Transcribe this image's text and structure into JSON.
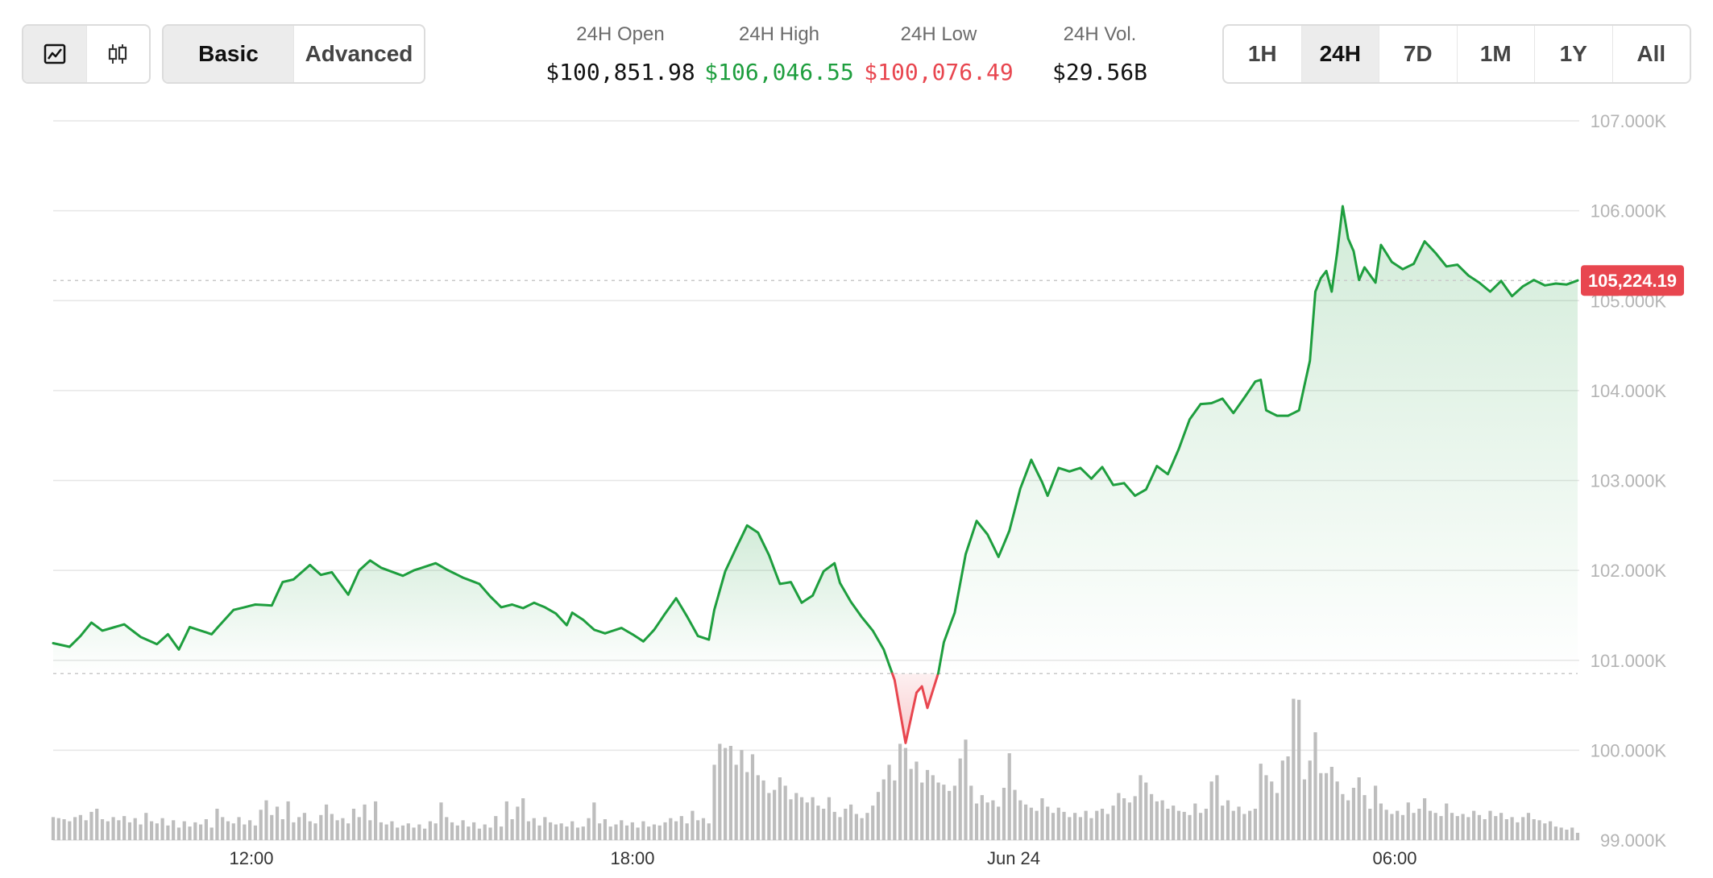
{
  "toolbar": {
    "chart_type_buttons": [
      {
        "icon": "line-chart-icon",
        "active": true
      },
      {
        "icon": "candlestick-icon",
        "active": false
      }
    ],
    "mode_buttons": [
      {
        "label": "Basic",
        "active": true
      },
      {
        "label": "Advanced",
        "active": false
      }
    ],
    "range_buttons": [
      {
        "label": "1H",
        "active": false
      },
      {
        "label": "24H",
        "active": true
      },
      {
        "label": "7D",
        "active": false
      },
      {
        "label": "1M",
        "active": false
      },
      {
        "label": "1Y",
        "active": false
      },
      {
        "label": "All",
        "active": false
      }
    ]
  },
  "stats": {
    "open": {
      "label": "24H Open",
      "value": "$100,851.98"
    },
    "high": {
      "label": "24H High",
      "value": "$106,046.55"
    },
    "low": {
      "label": "24H Low",
      "value": "$100,076.49"
    },
    "volume": {
      "label": "24H Vol.",
      "value": "$29.56B"
    }
  },
  "colors": {
    "up": "#1e9e3e",
    "down": "#e8464f",
    "grid": "#e6e6e6",
    "volume": "#bdbdbd"
  },
  "chart_data": {
    "type": "line",
    "ylim": [
      99000,
      107000
    ],
    "y_ticks": [
      "107.000K",
      "106.000K",
      "105.000K",
      "104.000K",
      "103.000K",
      "102.000K",
      "101.000K",
      "100.000K",
      "99.000K"
    ],
    "x_ticks": [
      "12:00",
      "18:00",
      "Jun 24",
      "06:00"
    ],
    "reference_price": 100851.98,
    "last_price": 105224.19,
    "last_price_label": "105,224.19",
    "price_anchors": [
      [
        0,
        101190
      ],
      [
        3,
        101150
      ],
      [
        5,
        101270
      ],
      [
        7,
        101420
      ],
      [
        9,
        101330
      ],
      [
        13,
        101400
      ],
      [
        16,
        101260
      ],
      [
        19,
        101180
      ],
      [
        21,
        101290
      ],
      [
        23,
        101120
      ],
      [
        25,
        101370
      ],
      [
        29,
        101290
      ],
      [
        33,
        101560
      ],
      [
        37,
        101620
      ],
      [
        40,
        101610
      ],
      [
        42,
        101870
      ],
      [
        44,
        101900
      ],
      [
        47,
        102060
      ],
      [
        49,
        101950
      ],
      [
        51,
        101980
      ],
      [
        54,
        101730
      ],
      [
        56,
        102000
      ],
      [
        58,
        102110
      ],
      [
        60,
        102030
      ],
      [
        64,
        101940
      ],
      [
        66,
        102000
      ],
      [
        68,
        102040
      ],
      [
        70,
        102080
      ],
      [
        72,
        102010
      ],
      [
        75,
        101920
      ],
      [
        78,
        101850
      ],
      [
        80,
        101710
      ],
      [
        82,
        101590
      ],
      [
        84,
        101620
      ],
      [
        86,
        101580
      ],
      [
        88,
        101640
      ],
      [
        90,
        101590
      ],
      [
        92,
        101520
      ],
      [
        94,
        101390
      ],
      [
        95,
        101530
      ],
      [
        97,
        101450
      ],
      [
        99,
        101340
      ],
      [
        101,
        101300
      ],
      [
        104,
        101360
      ],
      [
        106,
        101290
      ],
      [
        108,
        101210
      ],
      [
        110,
        101340
      ],
      [
        112,
        101520
      ],
      [
        114,
        101690
      ],
      [
        116,
        101490
      ],
      [
        118,
        101270
      ],
      [
        120,
        101230
      ],
      [
        121,
        101560
      ],
      [
        123,
        101990
      ],
      [
        125,
        102250
      ],
      [
        127,
        102500
      ],
      [
        129,
        102420
      ],
      [
        131,
        102170
      ],
      [
        133,
        101850
      ],
      [
        135,
        101870
      ],
      [
        137,
        101640
      ],
      [
        139,
        101720
      ],
      [
        141,
        101990
      ],
      [
        143,
        102080
      ],
      [
        144,
        101860
      ],
      [
        146,
        101650
      ],
      [
        148,
        101480
      ],
      [
        150,
        101330
      ],
      [
        152,
        101120
      ],
      [
        154,
        100780
      ],
      [
        156,
        100080
      ],
      [
        158,
        100640
      ],
      [
        159,
        100710
      ],
      [
        160,
        100470
      ],
      [
        162,
        100860
      ],
      [
        163,
        101200
      ],
      [
        165,
        101530
      ],
      [
        167,
        102180
      ],
      [
        169,
        102550
      ],
      [
        171,
        102400
      ],
      [
        173,
        102150
      ],
      [
        175,
        102440
      ],
      [
        177,
        102910
      ],
      [
        179,
        103230
      ],
      [
        181,
        102980
      ],
      [
        182,
        102830
      ],
      [
        184,
        103140
      ],
      [
        186,
        103100
      ],
      [
        188,
        103140
      ],
      [
        190,
        103020
      ],
      [
        192,
        103150
      ],
      [
        194,
        102950
      ],
      [
        196,
        102970
      ],
      [
        198,
        102830
      ],
      [
        200,
        102900
      ],
      [
        202,
        103160
      ],
      [
        204,
        103070
      ],
      [
        206,
        103350
      ],
      [
        208,
        103680
      ],
      [
        210,
        103850
      ],
      [
        212,
        103860
      ],
      [
        214,
        103910
      ],
      [
        216,
        103750
      ],
      [
        218,
        103920
      ],
      [
        220,
        104100
      ],
      [
        221,
        104120
      ],
      [
        222,
        103780
      ],
      [
        224,
        103720
      ],
      [
        226,
        103720
      ],
      [
        228,
        103780
      ],
      [
        230,
        104330
      ],
      [
        231,
        105100
      ],
      [
        232,
        105250
      ],
      [
        233,
        105330
      ],
      [
        234,
        105100
      ],
      [
        235,
        105540
      ],
      [
        236,
        106050
      ],
      [
        237,
        105690
      ],
      [
        238,
        105550
      ],
      [
        239,
        105230
      ],
      [
        240,
        105370
      ],
      [
        242,
        105200
      ],
      [
        243,
        105620
      ],
      [
        245,
        105430
      ],
      [
        247,
        105350
      ],
      [
        249,
        105410
      ],
      [
        251,
        105660
      ],
      [
        253,
        105530
      ],
      [
        255,
        105380
      ],
      [
        257,
        105400
      ],
      [
        259,
        105280
      ],
      [
        261,
        105200
      ],
      [
        263,
        105100
      ],
      [
        265,
        105220
      ],
      [
        267,
        105050
      ],
      [
        269,
        105160
      ],
      [
        271,
        105230
      ],
      [
        273,
        105170
      ],
      [
        275,
        105190
      ],
      [
        277,
        105180
      ],
      [
        279,
        105224
      ]
    ],
    "volume_bars": [
      [
        0,
        0.22
      ],
      [
        1,
        0.21
      ],
      [
        2,
        0.2
      ],
      [
        3,
        0.18
      ],
      [
        4,
        0.22
      ],
      [
        5,
        0.24
      ],
      [
        6,
        0.19
      ],
      [
        7,
        0.27
      ],
      [
        8,
        0.3
      ],
      [
        9,
        0.2
      ],
      [
        10,
        0.18
      ],
      [
        11,
        0.22
      ],
      [
        12,
        0.19
      ],
      [
        13,
        0.23
      ],
      [
        14,
        0.17
      ],
      [
        15,
        0.21
      ],
      [
        16,
        0.15
      ],
      [
        17,
        0.26
      ],
      [
        18,
        0.18
      ],
      [
        19,
        0.16
      ],
      [
        20,
        0.21
      ],
      [
        21,
        0.14
      ],
      [
        22,
        0.19
      ],
      [
        23,
        0.12
      ],
      [
        24,
        0.18
      ],
      [
        25,
        0.13
      ],
      [
        26,
        0.17
      ],
      [
        27,
        0.15
      ],
      [
        28,
        0.2
      ],
      [
        29,
        0.12
      ],
      [
        30,
        0.3
      ],
      [
        31,
        0.22
      ],
      [
        32,
        0.18
      ],
      [
        33,
        0.16
      ],
      [
        34,
        0.22
      ],
      [
        35,
        0.15
      ],
      [
        36,
        0.19
      ],
      [
        37,
        0.14
      ],
      [
        38,
        0.29
      ],
      [
        39,
        0.38
      ],
      [
        40,
        0.24
      ],
      [
        41,
        0.32
      ],
      [
        42,
        0.2
      ],
      [
        43,
        0.37
      ],
      [
        44,
        0.17
      ],
      [
        45,
        0.22
      ],
      [
        46,
        0.26
      ],
      [
        47,
        0.18
      ],
      [
        48,
        0.16
      ],
      [
        49,
        0.24
      ],
      [
        50,
        0.34
      ],
      [
        51,
        0.25
      ],
      [
        52,
        0.19
      ],
      [
        53,
        0.21
      ],
      [
        54,
        0.16
      ],
      [
        55,
        0.3
      ],
      [
        56,
        0.22
      ],
      [
        57,
        0.34
      ],
      [
        58,
        0.19
      ],
      [
        59,
        0.37
      ],
      [
        60,
        0.17
      ],
      [
        61,
        0.15
      ],
      [
        62,
        0.18
      ],
      [
        63,
        0.12
      ],
      [
        64,
        0.14
      ],
      [
        65,
        0.16
      ],
      [
        66,
        0.12
      ],
      [
        67,
        0.15
      ],
      [
        68,
        0.11
      ],
      [
        69,
        0.18
      ],
      [
        70,
        0.16
      ],
      [
        71,
        0.36
      ],
      [
        72,
        0.22
      ],
      [
        73,
        0.17
      ],
      [
        74,
        0.14
      ],
      [
        75,
        0.19
      ],
      [
        76,
        0.13
      ],
      [
        77,
        0.17
      ],
      [
        78,
        0.11
      ],
      [
        79,
        0.15
      ],
      [
        80,
        0.12
      ],
      [
        81,
        0.23
      ],
      [
        82,
        0.13
      ],
      [
        83,
        0.37
      ],
      [
        84,
        0.2
      ],
      [
        85,
        0.32
      ],
      [
        86,
        0.4
      ],
      [
        87,
        0.18
      ],
      [
        88,
        0.21
      ],
      [
        89,
        0.14
      ],
      [
        90,
        0.22
      ],
      [
        91,
        0.17
      ],
      [
        92,
        0.15
      ],
      [
        93,
        0.16
      ],
      [
        94,
        0.13
      ],
      [
        95,
        0.18
      ],
      [
        96,
        0.12
      ],
      [
        97,
        0.13
      ],
      [
        98,
        0.21
      ],
      [
        99,
        0.36
      ],
      [
        100,
        0.16
      ],
      [
        101,
        0.2
      ],
      [
        102,
        0.13
      ],
      [
        103,
        0.15
      ],
      [
        104,
        0.19
      ],
      [
        105,
        0.14
      ],
      [
        106,
        0.17
      ],
      [
        107,
        0.12
      ],
      [
        108,
        0.18
      ],
      [
        109,
        0.13
      ],
      [
        110,
        0.15
      ],
      [
        111,
        0.14
      ],
      [
        112,
        0.17
      ],
      [
        113,
        0.21
      ],
      [
        114,
        0.18
      ],
      [
        115,
        0.23
      ],
      [
        116,
        0.16
      ],
      [
        117,
        0.28
      ],
      [
        118,
        0.19
      ],
      [
        119,
        0.21
      ],
      [
        120,
        0.16
      ],
      [
        121,
        0.72
      ],
      [
        122,
        0.92
      ],
      [
        123,
        0.88
      ],
      [
        124,
        0.9
      ],
      [
        125,
        0.72
      ],
      [
        126,
        0.86
      ],
      [
        127,
        0.65
      ],
      [
        128,
        0.82
      ],
      [
        129,
        0.62
      ],
      [
        130,
        0.57
      ],
      [
        131,
        0.45
      ],
      [
        132,
        0.48
      ],
      [
        133,
        0.6
      ],
      [
        134,
        0.52
      ],
      [
        135,
        0.39
      ],
      [
        136,
        0.45
      ],
      [
        137,
        0.41
      ],
      [
        138,
        0.36
      ],
      [
        139,
        0.41
      ],
      [
        140,
        0.33
      ],
      [
        141,
        0.3
      ],
      [
        142,
        0.41
      ],
      [
        143,
        0.27
      ],
      [
        144,
        0.22
      ],
      [
        145,
        0.3
      ],
      [
        146,
        0.34
      ],
      [
        147,
        0.25
      ],
      [
        148,
        0.21
      ],
      [
        149,
        0.26
      ],
      [
        150,
        0.33
      ],
      [
        151,
        0.46
      ],
      [
        152,
        0.58
      ],
      [
        153,
        0.72
      ],
      [
        154,
        0.57
      ],
      [
        155,
        0.92
      ],
      [
        156,
        0.88
      ],
      [
        157,
        0.68
      ],
      [
        158,
        0.75
      ],
      [
        159,
        0.55
      ],
      [
        160,
        0.67
      ],
      [
        161,
        0.62
      ],
      [
        162,
        0.55
      ],
      [
        163,
        0.53
      ],
      [
        164,
        0.47
      ],
      [
        165,
        0.52
      ],
      [
        166,
        0.78
      ],
      [
        167,
        0.96
      ],
      [
        168,
        0.52
      ],
      [
        169,
        0.35
      ],
      [
        170,
        0.43
      ],
      [
        171,
        0.36
      ],
      [
        172,
        0.38
      ],
      [
        173,
        0.32
      ],
      [
        174,
        0.5
      ],
      [
        175,
        0.83
      ],
      [
        176,
        0.48
      ],
      [
        177,
        0.38
      ],
      [
        178,
        0.34
      ],
      [
        179,
        0.31
      ],
      [
        180,
        0.28
      ],
      [
        181,
        0.4
      ],
      [
        182,
        0.32
      ],
      [
        183,
        0.26
      ],
      [
        184,
        0.31
      ],
      [
        185,
        0.27
      ],
      [
        186,
        0.22
      ],
      [
        187,
        0.26
      ],
      [
        188,
        0.22
      ],
      [
        189,
        0.28
      ],
      [
        190,
        0.21
      ],
      [
        191,
        0.28
      ],
      [
        192,
        0.3
      ],
      [
        193,
        0.25
      ],
      [
        194,
        0.33
      ],
      [
        195,
        0.45
      ],
      [
        196,
        0.4
      ],
      [
        197,
        0.36
      ],
      [
        198,
        0.42
      ],
      [
        199,
        0.62
      ],
      [
        200,
        0.55
      ],
      [
        201,
        0.44
      ],
      [
        202,
        0.37
      ],
      [
        203,
        0.38
      ],
      [
        204,
        0.3
      ],
      [
        205,
        0.33
      ],
      [
        206,
        0.28
      ],
      [
        207,
        0.27
      ],
      [
        208,
        0.24
      ],
      [
        209,
        0.35
      ],
      [
        210,
        0.26
      ],
      [
        211,
        0.3
      ],
      [
        212,
        0.56
      ],
      [
        213,
        0.62
      ],
      [
        214,
        0.33
      ],
      [
        215,
        0.38
      ],
      [
        216,
        0.28
      ],
      [
        217,
        0.32
      ],
      [
        218,
        0.25
      ],
      [
        219,
        0.28
      ],
      [
        220,
        0.3
      ],
      [
        221,
        0.73
      ],
      [
        222,
        0.62
      ],
      [
        223,
        0.56
      ],
      [
        224,
        0.45
      ],
      [
        225,
        0.76
      ],
      [
        226,
        0.8
      ],
      [
        227,
        1.35
      ],
      [
        228,
        1.34
      ],
      [
        229,
        0.58
      ],
      [
        230,
        0.76
      ],
      [
        231,
        1.03
      ],
      [
        232,
        0.64
      ],
      [
        233,
        0.64
      ],
      [
        234,
        0.7
      ],
      [
        235,
        0.56
      ],
      [
        236,
        0.44
      ],
      [
        237,
        0.38
      ],
      [
        238,
        0.5
      ],
      [
        239,
        0.6
      ],
      [
        240,
        0.43
      ],
      [
        241,
        0.3
      ],
      [
        242,
        0.52
      ],
      [
        243,
        0.35
      ],
      [
        244,
        0.29
      ],
      [
        245,
        0.25
      ],
      [
        246,
        0.28
      ],
      [
        247,
        0.24
      ],
      [
        248,
        0.36
      ],
      [
        249,
        0.26
      ],
      [
        250,
        0.3
      ],
      [
        251,
        0.4
      ],
      [
        252,
        0.28
      ],
      [
        253,
        0.26
      ],
      [
        254,
        0.23
      ],
      [
        255,
        0.35
      ],
      [
        256,
        0.26
      ],
      [
        257,
        0.23
      ],
      [
        258,
        0.25
      ],
      [
        259,
        0.22
      ],
      [
        260,
        0.28
      ],
      [
        261,
        0.24
      ],
      [
        262,
        0.2
      ],
      [
        263,
        0.28
      ],
      [
        264,
        0.23
      ],
      [
        265,
        0.26
      ],
      [
        266,
        0.2
      ],
      [
        267,
        0.22
      ],
      [
        268,
        0.17
      ],
      [
        269,
        0.22
      ],
      [
        270,
        0.26
      ],
      [
        271,
        0.2
      ],
      [
        272,
        0.19
      ],
      [
        273,
        0.16
      ],
      [
        274,
        0.18
      ],
      [
        275,
        0.13
      ],
      [
        276,
        0.12
      ],
      [
        277,
        0.1
      ],
      [
        278,
        0.12
      ],
      [
        279,
        0.07
      ]
    ]
  }
}
